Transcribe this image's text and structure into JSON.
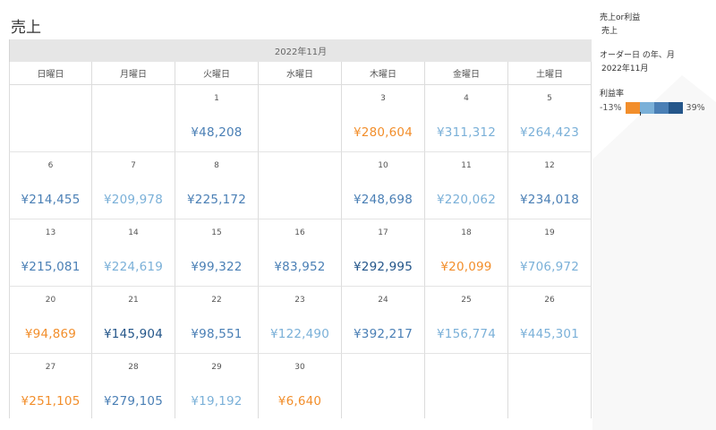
{
  "title": "売上",
  "month_label": "2022年11月",
  "weekdays": [
    "日曜日",
    "月曜日",
    "火曜日",
    "水曜日",
    "木曜日",
    "金曜日",
    "土曜日"
  ],
  "colors": {
    "orange": "#f28e2b",
    "light": "#7ab0d8",
    "medium": "#4a7fb5",
    "dark": "#24568a"
  },
  "weeks": [
    [
      {
        "day": "",
        "value": "",
        "color": ""
      },
      {
        "day": "",
        "value": "",
        "color": ""
      },
      {
        "day": "1",
        "value": "¥48,208",
        "color": "medium"
      },
      {
        "day": "",
        "value": "",
        "color": ""
      },
      {
        "day": "3",
        "value": "¥280,604",
        "color": "orange"
      },
      {
        "day": "4",
        "value": "¥311,312",
        "color": "light"
      },
      {
        "day": "5",
        "value": "¥264,423",
        "color": "light"
      }
    ],
    [
      {
        "day": "6",
        "value": "¥214,455",
        "color": "medium"
      },
      {
        "day": "7",
        "value": "¥209,978",
        "color": "light"
      },
      {
        "day": "8",
        "value": "¥225,172",
        "color": "medium"
      },
      {
        "day": "",
        "value": "",
        "color": ""
      },
      {
        "day": "10",
        "value": "¥248,698",
        "color": "medium"
      },
      {
        "day": "11",
        "value": "¥220,062",
        "color": "light"
      },
      {
        "day": "12",
        "value": "¥234,018",
        "color": "medium"
      }
    ],
    [
      {
        "day": "13",
        "value": "¥215,081",
        "color": "medium"
      },
      {
        "day": "14",
        "value": "¥224,619",
        "color": "light"
      },
      {
        "day": "15",
        "value": "¥99,322",
        "color": "medium"
      },
      {
        "day": "16",
        "value": "¥83,952",
        "color": "medium"
      },
      {
        "day": "17",
        "value": "¥292,995",
        "color": "dark"
      },
      {
        "day": "18",
        "value": "¥20,099",
        "color": "orange"
      },
      {
        "day": "19",
        "value": "¥706,972",
        "color": "light"
      }
    ],
    [
      {
        "day": "20",
        "value": "¥94,869",
        "color": "orange"
      },
      {
        "day": "21",
        "value": "¥145,904",
        "color": "dark"
      },
      {
        "day": "22",
        "value": "¥98,551",
        "color": "medium"
      },
      {
        "day": "23",
        "value": "¥122,490",
        "color": "light"
      },
      {
        "day": "24",
        "value": "¥392,217",
        "color": "medium"
      },
      {
        "day": "25",
        "value": "¥156,774",
        "color": "light"
      },
      {
        "day": "26",
        "value": "¥445,301",
        "color": "light"
      }
    ],
    [
      {
        "day": "27",
        "value": "¥251,105",
        "color": "orange"
      },
      {
        "day": "28",
        "value": "¥279,105",
        "color": "medium"
      },
      {
        "day": "29",
        "value": "¥19,192",
        "color": "light"
      },
      {
        "day": "30",
        "value": "¥6,640",
        "color": "orange"
      },
      {
        "day": "",
        "value": "",
        "color": ""
      },
      {
        "day": "",
        "value": "",
        "color": ""
      },
      {
        "day": "",
        "value": "",
        "color": ""
      }
    ]
  ],
  "side_panel": {
    "filter1": {
      "title": "売上or利益",
      "value": "売上"
    },
    "filter2": {
      "title": "オーダー日 の年、月",
      "value": "2022年11月"
    },
    "color_legend": {
      "title": "利益率",
      "min": "-13%",
      "max": "39%",
      "swatches": [
        "#f28e2b",
        "#7ab0d8",
        "#4a7fb5",
        "#24568a"
      ]
    }
  },
  "chart_data": {
    "type": "table",
    "title": "売上",
    "subtitle": "2022年11月",
    "columns": [
      "日曜日",
      "月曜日",
      "火曜日",
      "水曜日",
      "木曜日",
      "金曜日",
      "土曜日"
    ],
    "x": [
      1,
      3,
      4,
      5,
      6,
      7,
      8,
      10,
      11,
      12,
      13,
      14,
      15,
      16,
      17,
      18,
      19,
      20,
      21,
      22,
      23,
      24,
      25,
      26,
      27,
      28,
      29,
      30
    ],
    "values": [
      48208,
      280604,
      311312,
      264423,
      214455,
      209978,
      225172,
      248698,
      220062,
      234018,
      215081,
      224619,
      99322,
      83952,
      292995,
      20099,
      706972,
      94869,
      145904,
      98551,
      122490,
      392217,
      156774,
      445301,
      251105,
      279105,
      19192,
      6640
    ],
    "color_measure": "利益率",
    "color_range": [
      -13,
      39
    ],
    "legend_position": "right"
  }
}
